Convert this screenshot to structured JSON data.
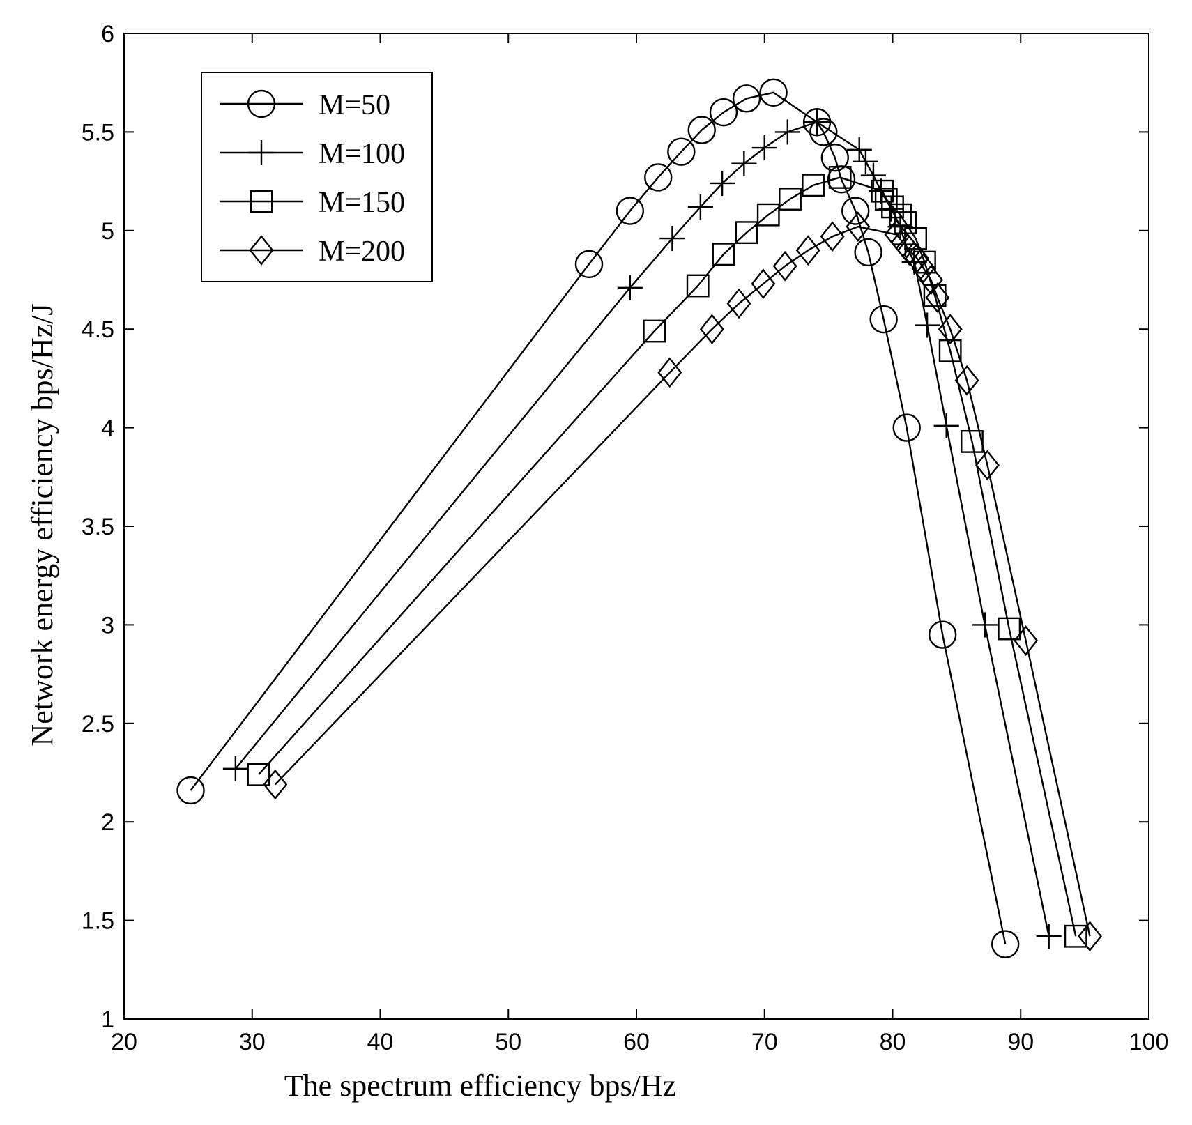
{
  "chart_data": {
    "type": "line",
    "title": "",
    "xlabel": "The spectrum efficiency bps/Hz",
    "ylabel": "Network energy efficiency bps/Hz/J",
    "xlim": [
      20,
      100
    ],
    "ylim": [
      1,
      6
    ],
    "xticks": [
      20,
      30,
      40,
      50,
      60,
      70,
      80,
      90,
      100
    ],
    "yticks": [
      1,
      1.5,
      2,
      2.5,
      3,
      3.5,
      4,
      4.5,
      5,
      5.5,
      6
    ],
    "xtick_labels": [
      "20",
      "30",
      "40",
      "50",
      "60",
      "70",
      "80",
      "90",
      "100"
    ],
    "ytick_labels": [
      "1",
      "1.5",
      "2",
      "2.5",
      "3",
      "3.5",
      "4",
      "4.5",
      "5",
      "5.5",
      "6"
    ],
    "grid": false,
    "legend_position": "top-left",
    "series": [
      {
        "name": "M=50",
        "marker": "circle",
        "x": [
          25.2,
          56.3,
          59.5,
          61.7,
          63.5,
          65.1,
          66.8,
          68.6,
          70.7,
          74.1,
          74.6,
          75.5,
          76.0,
          77.1,
          78.1,
          79.3,
          81.1,
          83.9,
          88.8
        ],
        "y": [
          2.16,
          4.83,
          5.1,
          5.27,
          5.4,
          5.51,
          5.6,
          5.67,
          5.7,
          5.55,
          5.5,
          5.37,
          5.26,
          5.1,
          4.89,
          4.55,
          4.0,
          2.95,
          1.38
        ]
      },
      {
        "name": "M=100",
        "marker": "plus",
        "x": [
          28.7,
          59.5,
          62.8,
          65.0,
          66.7,
          68.4,
          70.0,
          71.8,
          74.1,
          77.4,
          77.9,
          78.5,
          79.1,
          79.9,
          80.6,
          81.0,
          81.7,
          82.7,
          84.2,
          87.2,
          92.2
        ],
        "y": [
          2.27,
          4.71,
          4.96,
          5.12,
          5.24,
          5.34,
          5.42,
          5.5,
          5.55,
          5.41,
          5.35,
          5.28,
          5.2,
          5.11,
          5.02,
          4.93,
          4.84,
          4.52,
          4.01,
          3.0,
          1.42
        ]
      },
      {
        "name": "M=150",
        "marker": "square",
        "x": [
          30.5,
          61.4,
          64.8,
          66.8,
          68.6,
          70.3,
          72.0,
          73.8,
          75.9,
          79.2,
          79.5,
          80.0,
          80.6,
          81.0,
          81.8,
          82.5,
          83.3,
          84.5,
          86.2,
          89.1,
          94.3
        ],
        "y": [
          2.24,
          4.49,
          4.72,
          4.88,
          4.99,
          5.08,
          5.16,
          5.23,
          5.27,
          5.2,
          5.16,
          5.12,
          5.08,
          5.04,
          4.96,
          4.84,
          4.67,
          4.39,
          3.93,
          2.98,
          1.42
        ]
      },
      {
        "name": "M=200",
        "marker": "diamond",
        "x": [
          31.8,
          62.6,
          65.9,
          68.0,
          69.9,
          71.6,
          73.4,
          75.3,
          77.3,
          80.3,
          80.8,
          81.3,
          81.9,
          82.4,
          83.0,
          83.5,
          84.5,
          85.8,
          87.4,
          90.4,
          95.4
        ],
        "y": [
          2.19,
          4.28,
          4.5,
          4.63,
          4.73,
          4.82,
          4.9,
          4.97,
          5.02,
          4.98,
          4.94,
          4.9,
          4.86,
          4.81,
          4.75,
          4.66,
          4.5,
          4.24,
          3.81,
          2.92,
          1.42
        ]
      }
    ]
  }
}
